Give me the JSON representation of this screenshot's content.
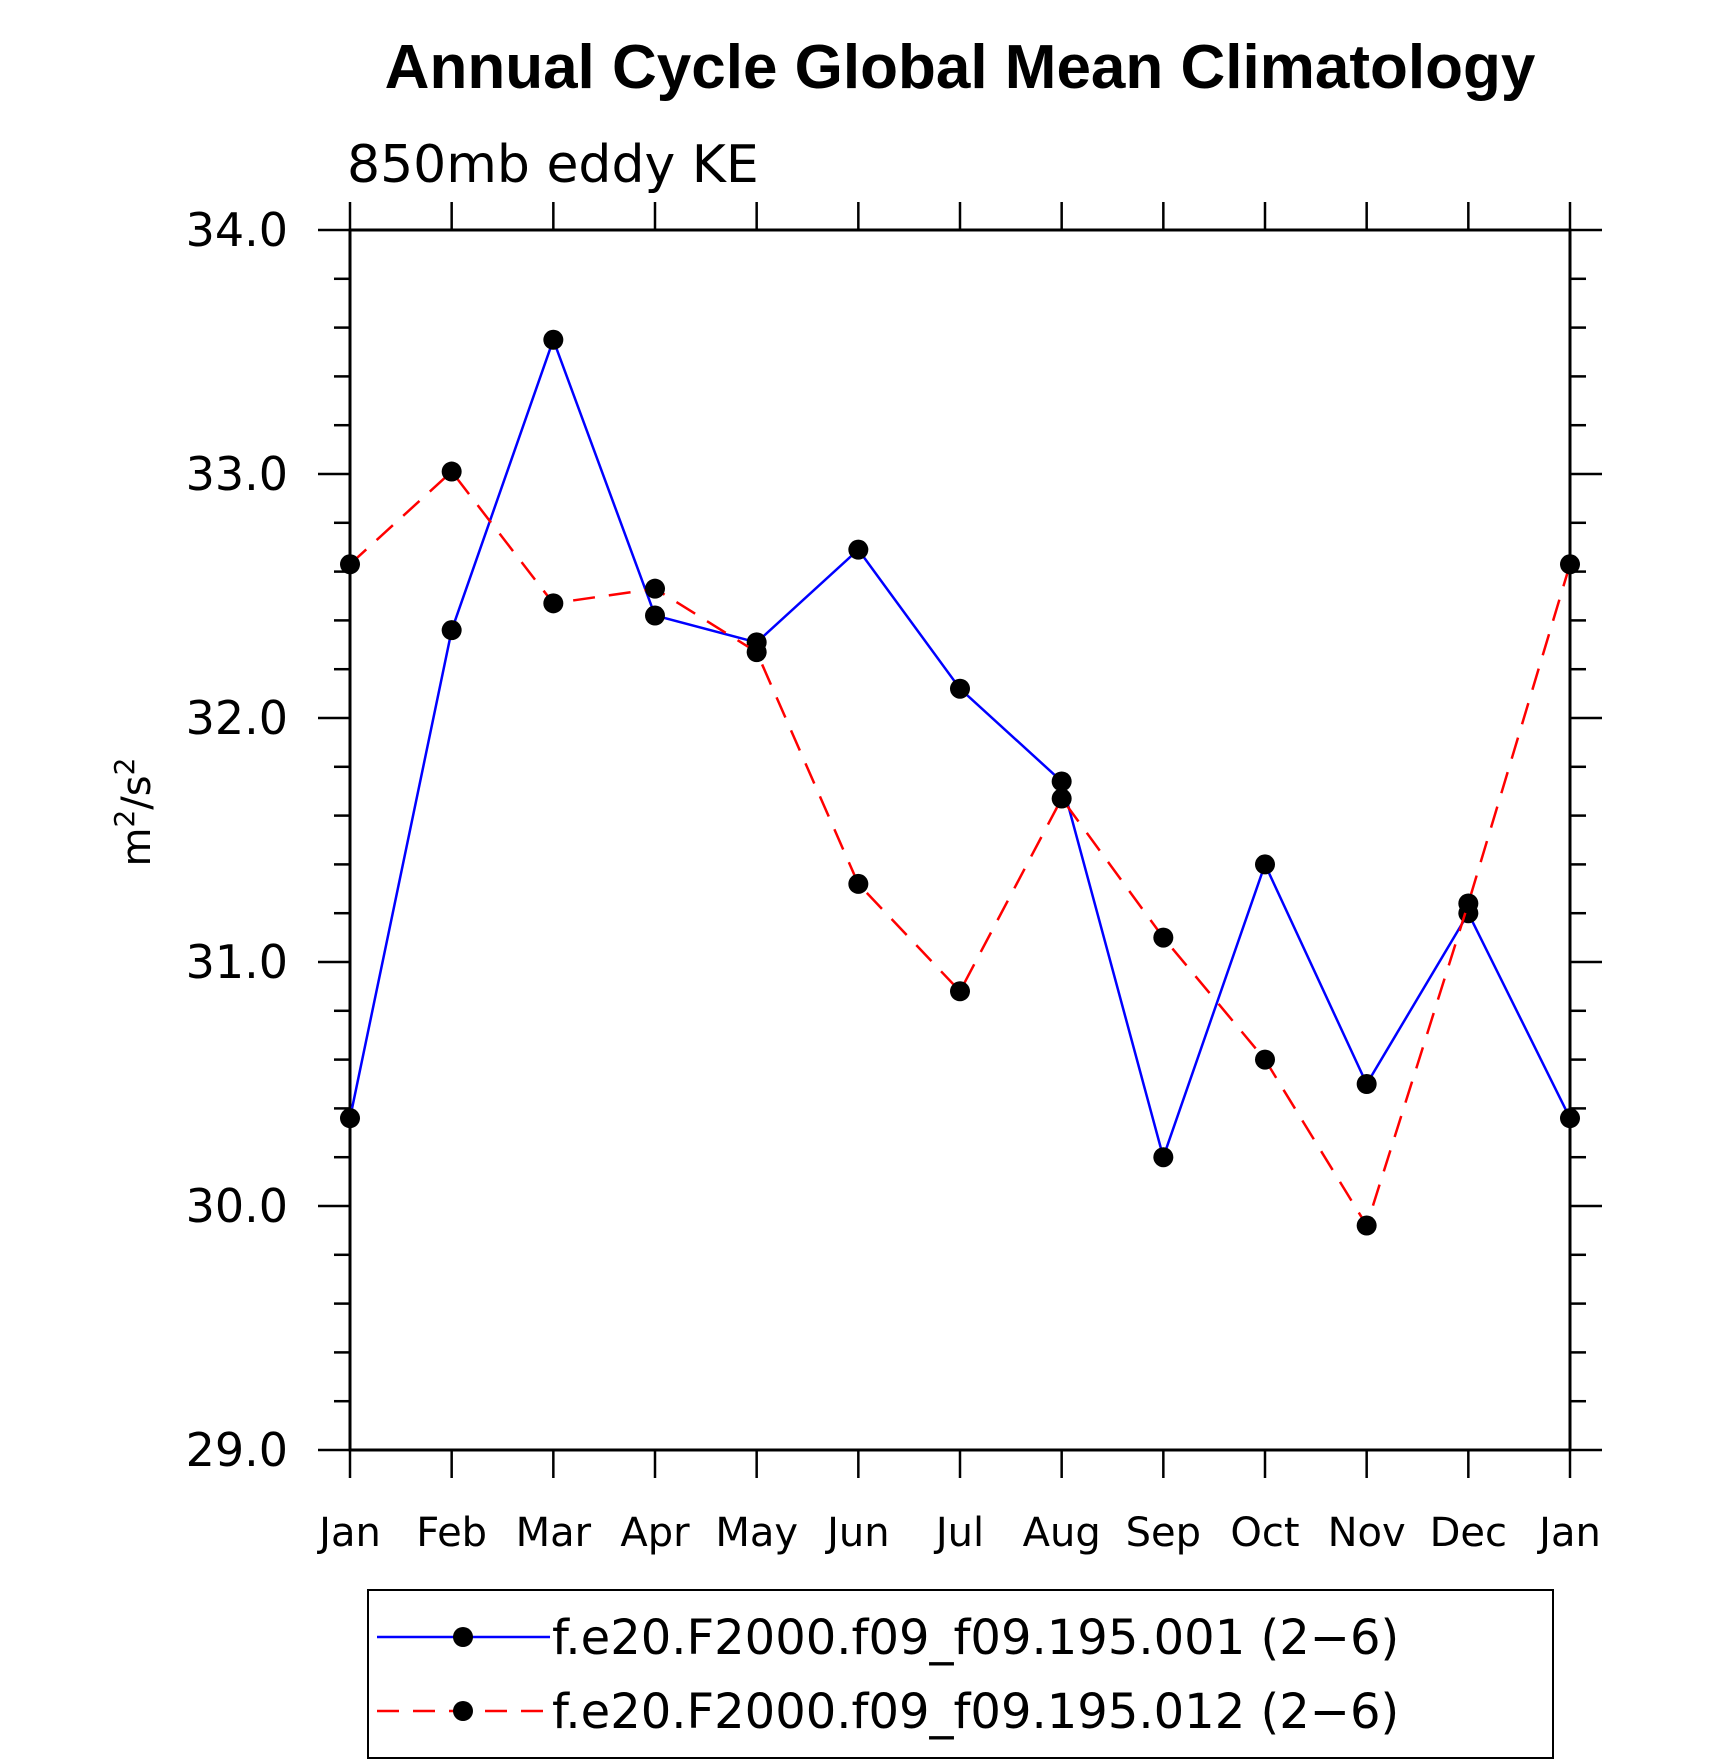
{
  "chart_data": {
    "type": "line",
    "title": "Annual Cycle Global Mean Climatology",
    "subtitle": "850mb eddy KE",
    "xlabel": "",
    "ylabel_base": "m",
    "ylabel_sup1": "2",
    "ylabel_mid": "/s",
    "ylabel_sup2": "2",
    "categories": [
      "Jan",
      "Feb",
      "Mar",
      "Apr",
      "May",
      "Jun",
      "Jul",
      "Aug",
      "Sep",
      "Oct",
      "Nov",
      "Dec",
      "Jan"
    ],
    "ylim": [
      29.0,
      34.0
    ],
    "yticks": [
      "29.0",
      "30.0",
      "31.0",
      "32.0",
      "33.0",
      "34.0"
    ],
    "grid": false,
    "legend_position": "bottom",
    "series": [
      {
        "name": "f.e20.F2000.f09_f09.195.001 (2−6)",
        "color": "#0000ff",
        "style": "solid",
        "values": [
          30.36,
          32.36,
          33.55,
          32.42,
          32.31,
          32.69,
          32.12,
          31.74,
          30.2,
          31.4,
          30.5,
          31.2,
          30.36
        ]
      },
      {
        "name": "f.e20.F2000.f09_f09.195.012 (2−6)",
        "color": "#ff0000",
        "style": "dashed",
        "values": [
          32.63,
          33.01,
          32.47,
          32.53,
          32.27,
          31.32,
          30.88,
          31.67,
          31.1,
          30.6,
          29.92,
          31.24,
          32.63
        ]
      }
    ]
  }
}
